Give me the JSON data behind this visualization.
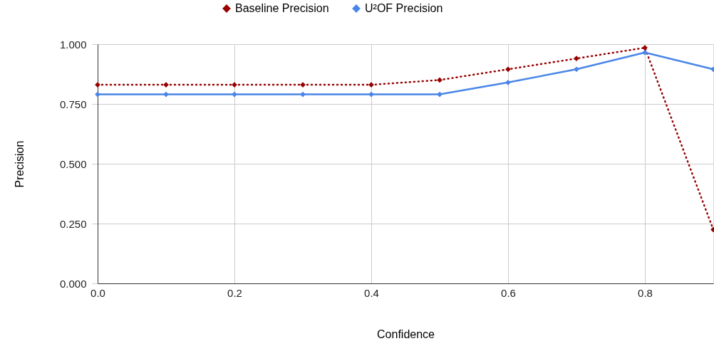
{
  "chart_data": {
    "type": "line",
    "xlabel": "Confidence",
    "ylabel": "Precision",
    "x": [
      0.0,
      0.1,
      0.2,
      0.3,
      0.4,
      0.5,
      0.6,
      0.7,
      0.8,
      0.9
    ],
    "series": [
      {
        "name": "Baseline Precision",
        "color": "#990000",
        "line_style": "dotted",
        "values": [
          0.83,
          0.83,
          0.83,
          0.83,
          0.83,
          0.85,
          0.895,
          0.94,
          0.985,
          0.225
        ]
      },
      {
        "name": "U²OF Precision",
        "color": "#4a86e8",
        "line_style": "solid",
        "values": [
          0.79,
          0.79,
          0.79,
          0.79,
          0.79,
          0.79,
          0.84,
          0.895,
          0.965,
          0.895
        ]
      }
    ],
    "xlim": [
      0,
      0.9
    ],
    "ylim": [
      0,
      1
    ],
    "xticks": [
      {
        "value": 0,
        "label": "0.0"
      },
      {
        "value": 0.2,
        "label": "0.2"
      },
      {
        "value": 0.4,
        "label": "0.4"
      },
      {
        "value": 0.6,
        "label": "0.6"
      },
      {
        "value": 0.8,
        "label": "0.8"
      }
    ],
    "yticks": [
      {
        "value": 0,
        "label": "0.000"
      },
      {
        "value": 0.25,
        "label": "0.250"
      },
      {
        "value": 0.5,
        "label": "0.500"
      },
      {
        "value": 0.75,
        "label": "0.750"
      },
      {
        "value": 1,
        "label": "1.000"
      }
    ],
    "grid": true,
    "legend": "top",
    "marker": "diamond"
  }
}
